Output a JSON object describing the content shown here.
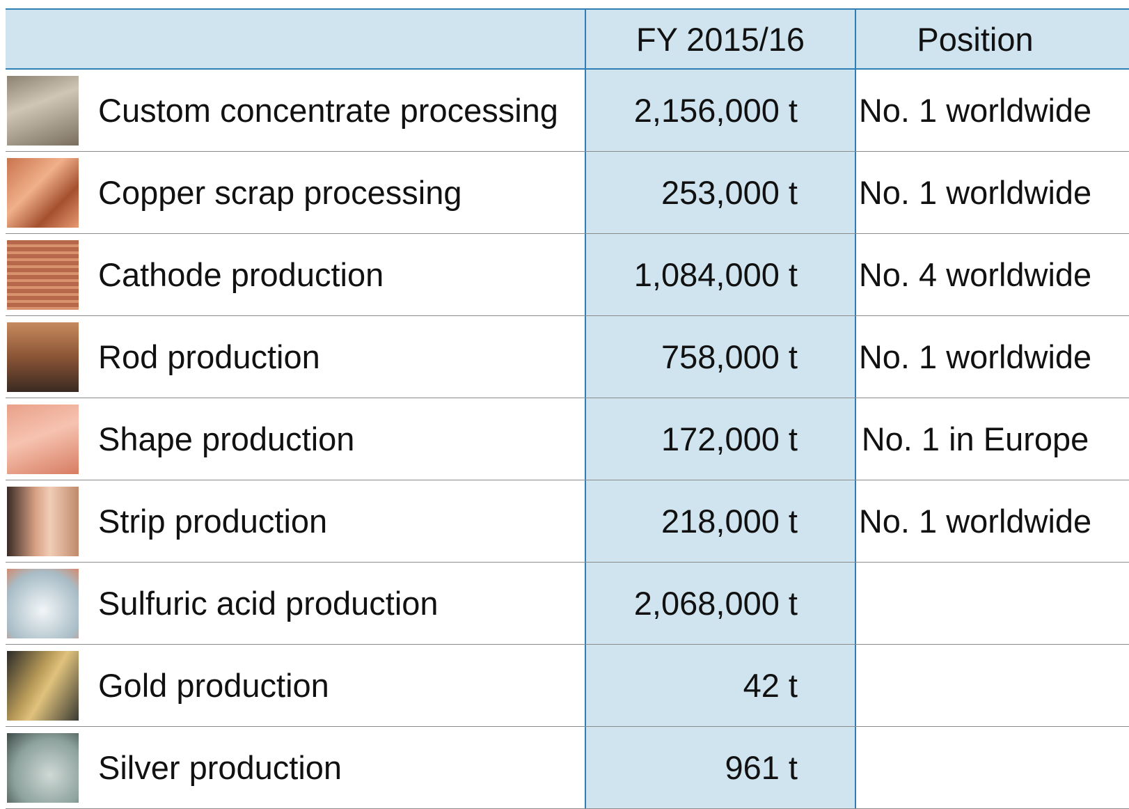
{
  "table": {
    "columns": [
      "FY 2015/16",
      "Position"
    ],
    "rows": [
      [
        "Custom concentrate processing",
        "2,156,000 t",
        "No. 1 worldwide"
      ],
      [
        "Copper scrap processing",
        "253,000 t",
        "No. 1 worldwide"
      ],
      [
        "Cathode production",
        "1,084,000 t",
        "No. 4 worldwide"
      ],
      [
        "Rod production",
        "758,000 t",
        "No. 1 worldwide"
      ],
      [
        "Shape production",
        "172,000 t",
        "No. 1 in Europe"
      ],
      [
        "Strip production",
        "218,000 t",
        "No. 1 worldwide"
      ],
      [
        "Sulfuric acid production",
        "2,068,000 t"
      ],
      [
        "Gold production",
        "42 t"
      ],
      [
        "Silver production",
        "961 t"
      ]
    ]
  }
}
